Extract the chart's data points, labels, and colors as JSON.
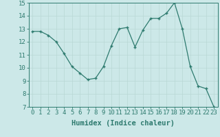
{
  "x": [
    0,
    1,
    2,
    3,
    4,
    5,
    6,
    7,
    8,
    9,
    10,
    11,
    12,
    13,
    14,
    15,
    16,
    17,
    18,
    19,
    20,
    21,
    22,
    23
  ],
  "y": [
    12.8,
    12.8,
    12.5,
    12.0,
    11.1,
    10.1,
    9.6,
    9.1,
    9.2,
    10.1,
    11.7,
    13.0,
    13.1,
    11.6,
    12.9,
    13.8,
    13.8,
    14.2,
    15.0,
    13.0,
    10.1,
    8.6,
    8.4,
    7.0
  ],
  "xlabel": "Humidex (Indice chaleur)",
  "ylim": [
    7,
    15
  ],
  "yticks": [
    7,
    8,
    9,
    10,
    11,
    12,
    13,
    14,
    15
  ],
  "xticks": [
    0,
    1,
    2,
    3,
    4,
    5,
    6,
    7,
    8,
    9,
    10,
    11,
    12,
    13,
    14,
    15,
    16,
    17,
    18,
    19,
    20,
    21,
    22,
    23
  ],
  "line_color": "#2d7a6e",
  "marker_color": "#2d7a6e",
  "bg_color": "#cce8e8",
  "grid_color": "#b8d8d4",
  "tick_label_fontsize": 6.5,
  "xlabel_fontsize": 7.5,
  "title": ""
}
